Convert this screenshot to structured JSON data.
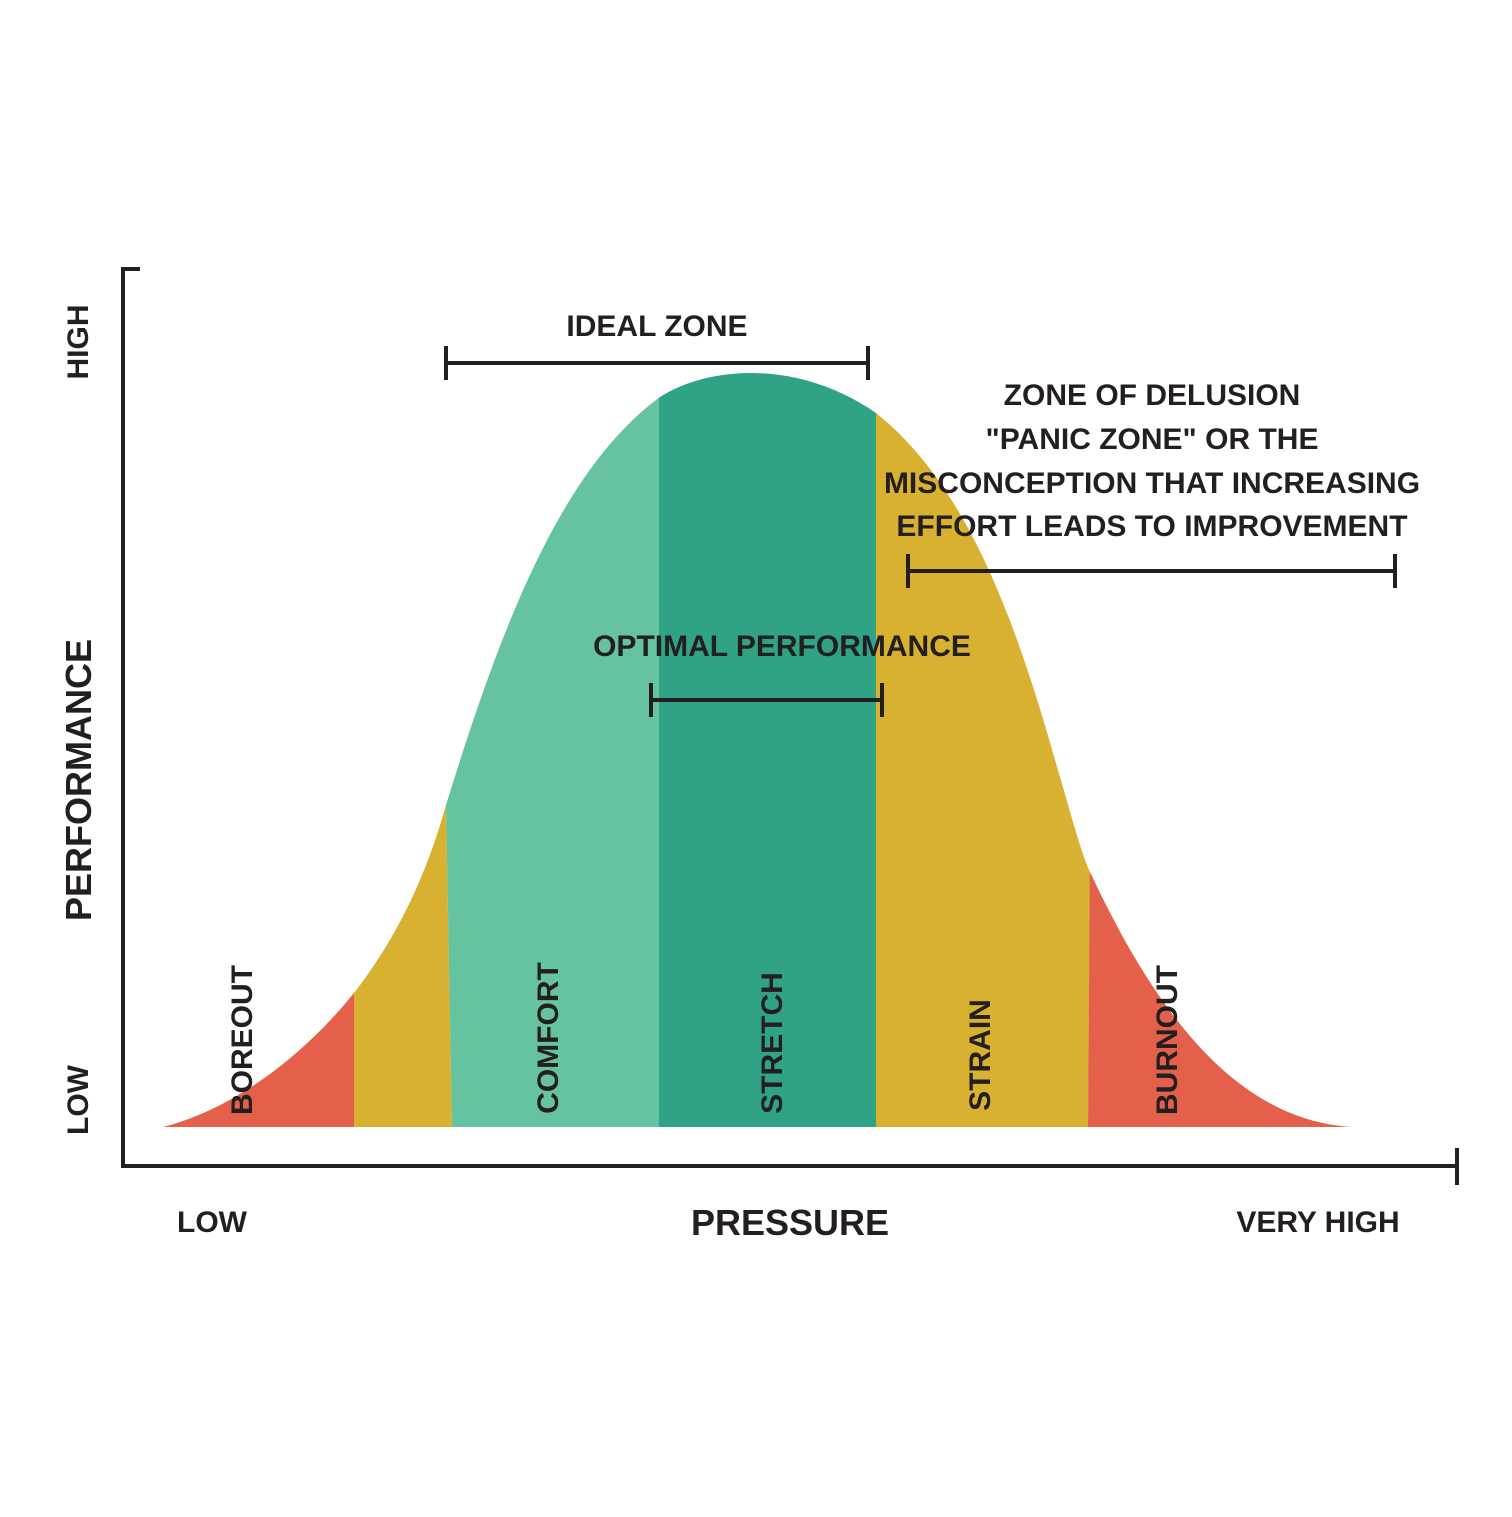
{
  "axes": {
    "y_label": "PERFORMANCE",
    "y_high": "HIGH",
    "y_low": "LOW",
    "x_label": "PRESSURE",
    "x_low": "LOW",
    "x_high": "VERY HIGH"
  },
  "zones": [
    {
      "label": "BOREOUT",
      "color": "#e4604b"
    },
    {
      "label": "",
      "color": "#d8b130"
    },
    {
      "label": "COMFORT",
      "color": "#66c39f"
    },
    {
      "label": "STRETCH",
      "color": "#30a386"
    },
    {
      "label": "STRAIN",
      "color": "#d8b130"
    },
    {
      "label": "BURNOUT",
      "color": "#e4604b"
    }
  ],
  "annotations": {
    "ideal_zone": "IDEAL ZONE",
    "optimal_performance": "OPTIMAL PERFORMANCE",
    "delusion": {
      "line1": "ZONE OF DELUSION",
      "line2": "\"PANIC ZONE\" OR THE",
      "line3": "MISCONCEPTION THAT INCREASING",
      "line4": "EFFORT LEADS TO IMPROVEMENT"
    }
  },
  "colors": {
    "axis": "#231f20",
    "text": "#231f20"
  }
}
